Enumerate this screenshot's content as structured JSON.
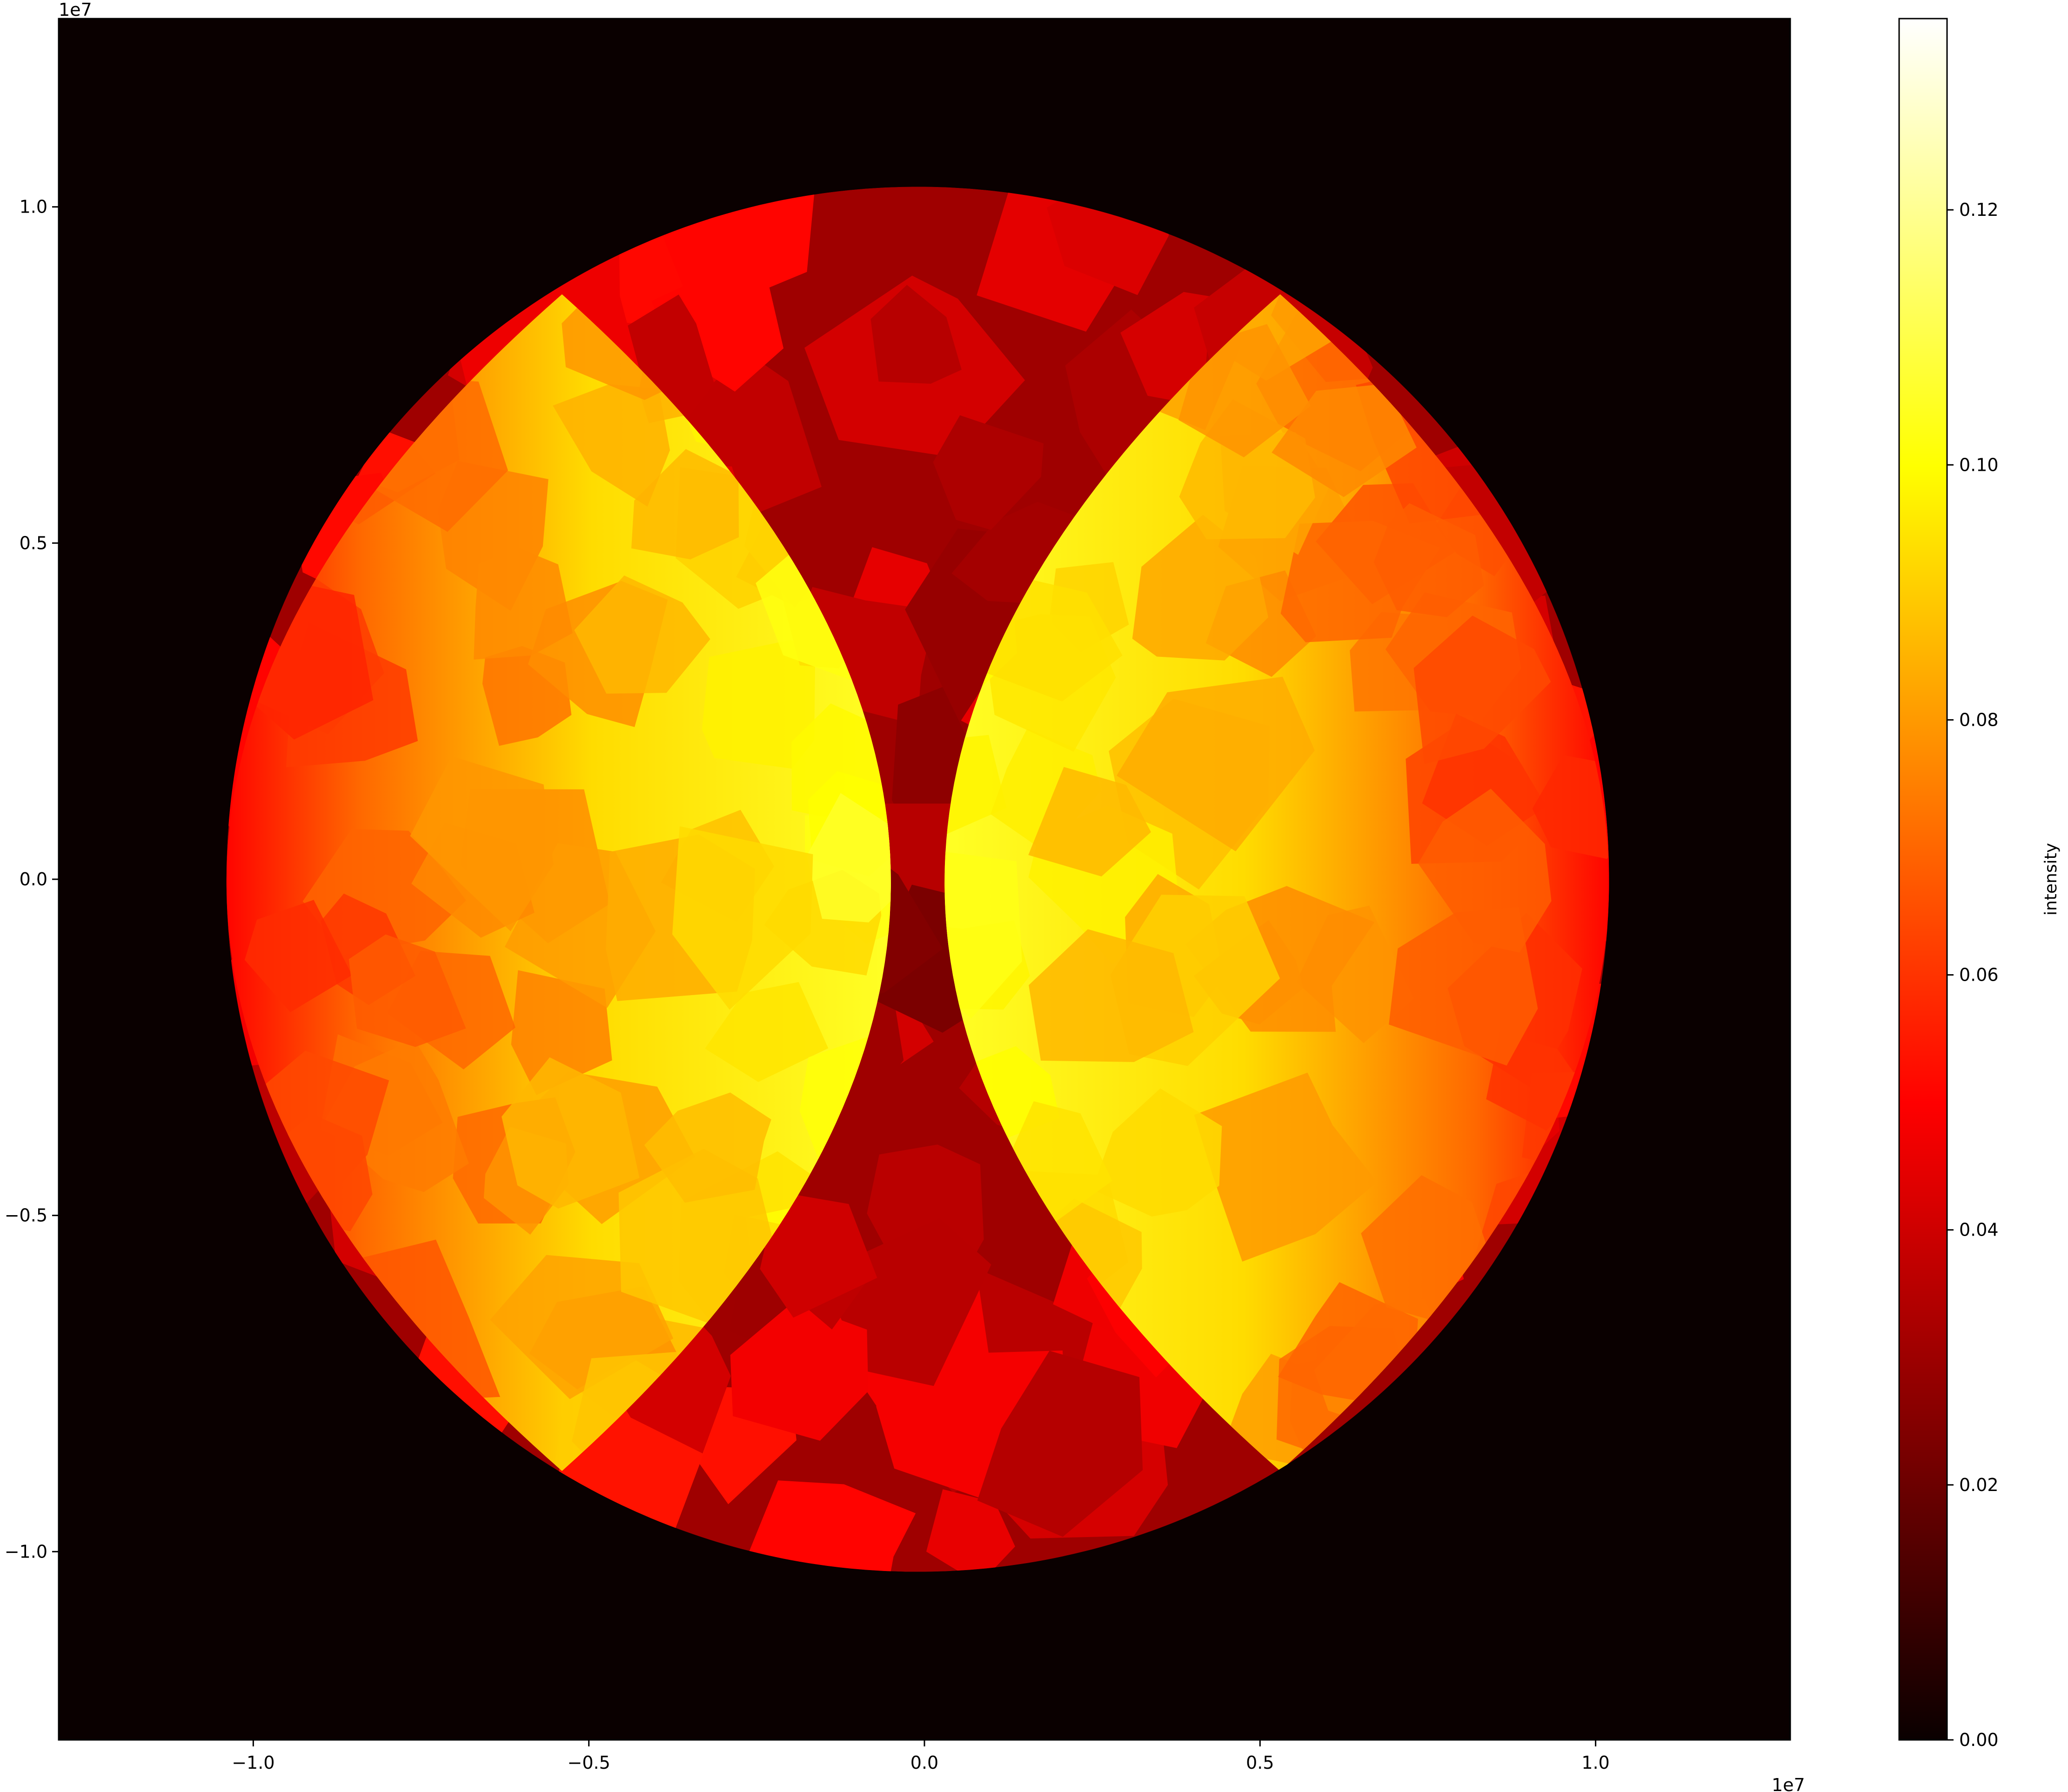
{
  "chart_data": {
    "type": "heatmap",
    "title": "",
    "xlabel": "",
    "ylabel": "",
    "x_offset_label": "1e7",
    "y_offset_label": "1e7",
    "xlim": [
      -1.29,
      1.29
    ],
    "ylim": [
      -1.28,
      1.28
    ],
    "x_ticks": [
      -1.0,
      -0.5,
      0.0,
      0.5,
      1.0
    ],
    "x_tick_labels": [
      "−1.0",
      "−0.5",
      "0.0",
      "0.5",
      "1.0"
    ],
    "y_ticks": [
      1.0,
      0.5,
      0.0,
      -0.5,
      -1.0
    ],
    "y_tick_labels": [
      "1.0",
      "0.5",
      "0.0",
      "−0.5",
      "−1.0"
    ],
    "background_value": 0.0,
    "regions": {
      "disk": {
        "center": [
          -0.01,
          0.0
        ],
        "radius": 1.03,
        "base_value": 0.03
      },
      "left_lens": {
        "chord_x": -0.54,
        "chord_y_range": [
          -0.88,
          0.87
        ],
        "bulge_to_x": -0.05,
        "value": 0.09
      },
      "right_lens": {
        "chord_x": 0.53,
        "chord_y_range": [
          -0.88,
          0.87
        ],
        "bulge_to_x": 0.03,
        "value": 0.09
      }
    },
    "colorbar": {
      "label": "intensity",
      "colormap": "hot",
      "vmin": 0.0,
      "vmax": 0.135,
      "ticks": [
        0.0,
        0.02,
        0.04,
        0.06,
        0.08,
        0.1,
        0.12
      ],
      "tick_labels": [
        "0.00",
        "0.02",
        "0.04",
        "0.06",
        "0.08",
        "0.10",
        "0.12"
      ]
    },
    "colors": {
      "background": "#0a0000",
      "cmap_stops": [
        "#0a0000",
        "#ff0000",
        "#ffff00",
        "#ffffff"
      ]
    }
  }
}
